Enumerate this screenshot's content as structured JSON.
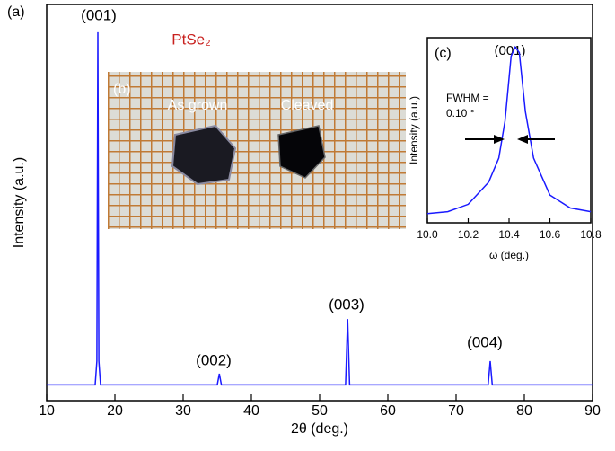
{
  "chart_data": [
    {
      "type": "line",
      "panel": "(a)",
      "xlabel": "2θ (deg.)",
      "ylabel": "Intensity (a.u.)",
      "xlim": [
        10,
        90
      ],
      "xticks": [
        10,
        20,
        30,
        40,
        50,
        60,
        70,
        80,
        90
      ],
      "ylim": [
        0,
        100
      ],
      "annotations": [
        "(001)",
        "(002)",
        "(003)",
        "(004)",
        "PtSe₂"
      ],
      "series": [
        {
          "color": "#1a1aff",
          "x": [
            10,
            17.1,
            17.35,
            17.5,
            17.65,
            17.9,
            35.0,
            35.3,
            35.6,
            53.8,
            54.1,
            54.4,
            74.7,
            75.0,
            75.3,
            90
          ],
          "values": [
            4,
            4,
            10,
            93,
            10,
            4,
            4,
            6.8,
            4,
            4,
            20.6,
            4,
            4,
            10,
            4,
            4
          ]
        }
      ]
    },
    {
      "type": "line",
      "panel": "(c)",
      "xlabel": "ω (deg.)",
      "ylabel": "Intensity (a.u.)",
      "xlim": [
        10.0,
        10.8
      ],
      "xticks": [
        {
          "value": 10.0,
          "label": "10.0"
        },
        10.2,
        10.4,
        10.6,
        10.8
      ],
      "ylim": [
        0,
        100
      ],
      "annotations": [
        "(001)",
        "FWHM =",
        "0.10 °"
      ],
      "series": [
        {
          "color": "#1a1aff",
          "x": [
            10.0,
            10.1,
            10.2,
            10.3,
            10.35,
            10.38,
            10.41,
            10.43,
            10.45,
            10.48,
            10.52,
            10.6,
            10.7,
            10.8
          ],
          "values": [
            5,
            6,
            10,
            22,
            35,
            55,
            90,
            95,
            92,
            60,
            35,
            15,
            8,
            6
          ]
        }
      ]
    }
  ],
  "photo": {
    "panel": "(b)",
    "labels": [
      "As grown",
      "Cleaved"
    ]
  }
}
